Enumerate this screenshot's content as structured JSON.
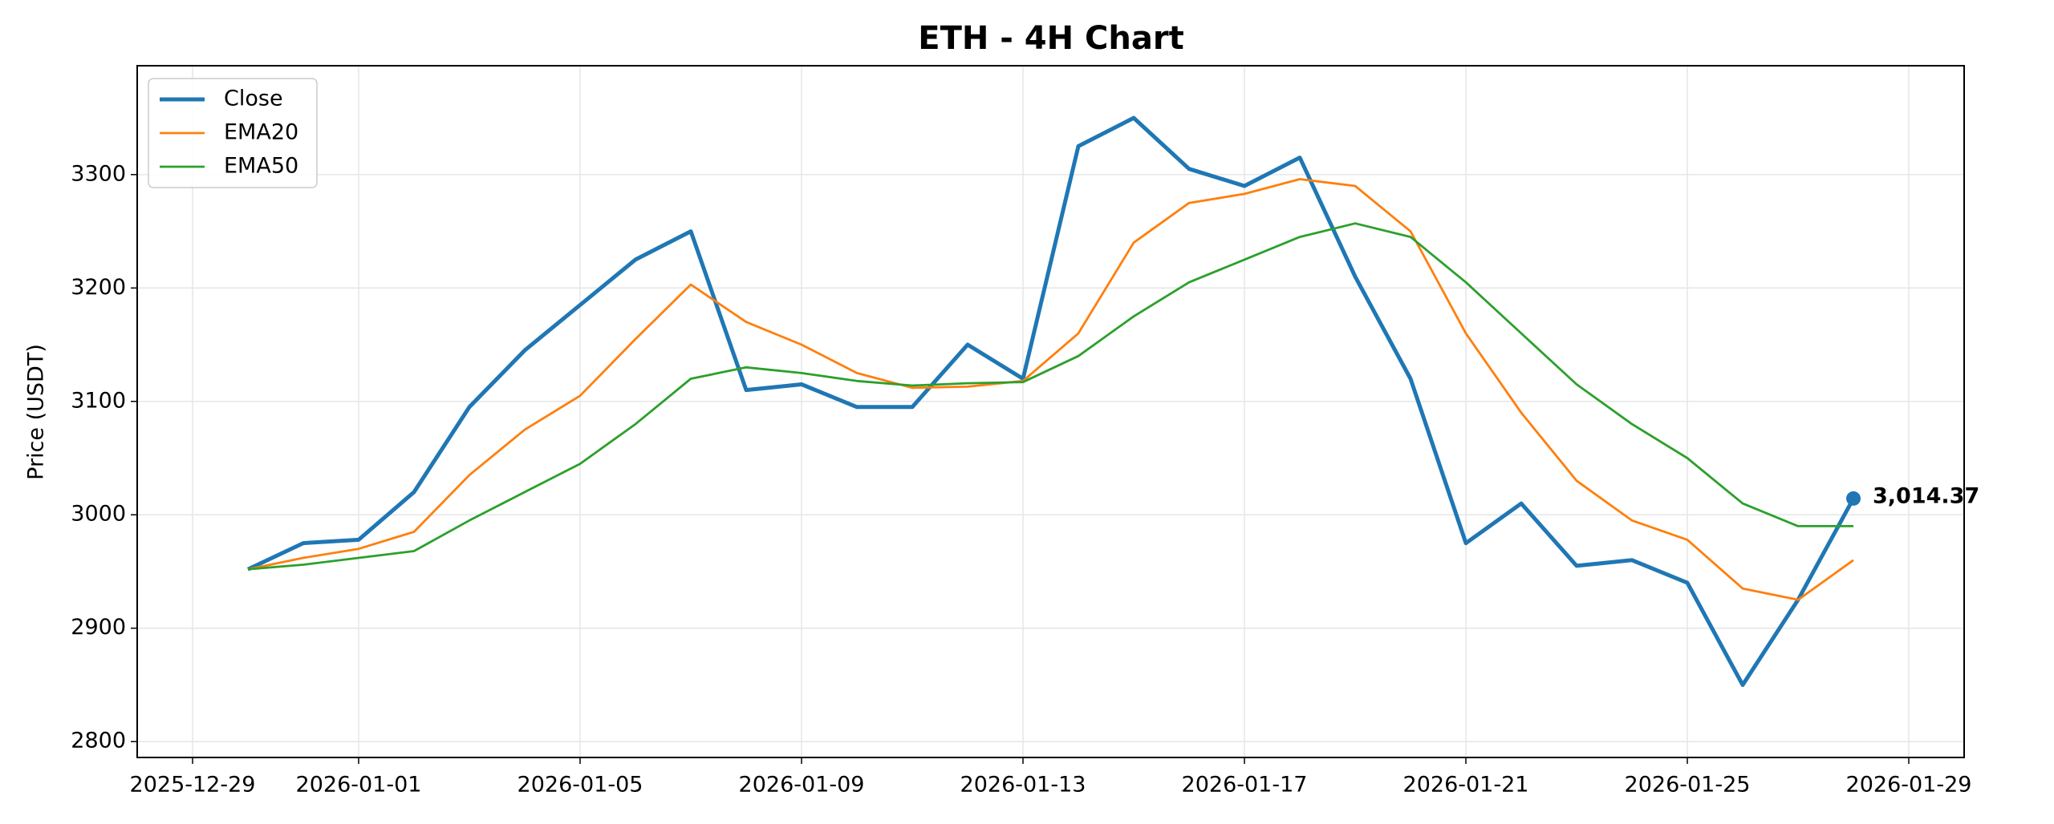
{
  "chart_data": {
    "type": "line",
    "title": "ETH - 4H Chart",
    "y_label": "Price (USDT)",
    "x": [
      "2025-12-30",
      "2025-12-31",
      "2026-01-01",
      "2026-01-02",
      "2026-01-03",
      "2026-01-04",
      "2026-01-05",
      "2026-01-06",
      "2026-01-07",
      "2026-01-08",
      "2026-01-09",
      "2026-01-10",
      "2026-01-11",
      "2026-01-12",
      "2026-01-13",
      "2026-01-14",
      "2026-01-15",
      "2026-01-16",
      "2026-01-17",
      "2026-01-18",
      "2026-01-19",
      "2026-01-20",
      "2026-01-21",
      "2026-01-22",
      "2026-01-23",
      "2026-01-24",
      "2026-01-25",
      "2026-01-26",
      "2026-01-27",
      "2026-01-28"
    ],
    "series": [
      {
        "name": "Close",
        "color": "#1f77b4",
        "values": [
          2952,
          2975,
          2978,
          3020,
          3095,
          3145,
          3185,
          3225,
          3250,
          3110,
          3115,
          3095,
          3095,
          3150,
          3120,
          3325,
          3350,
          3305,
          3290,
          3315,
          3210,
          3120,
          2975,
          3010,
          2955,
          2960,
          2940,
          2850,
          2925,
          3014.37
        ],
        "value_labels": [
          null,
          null,
          null,
          null,
          null,
          null,
          null,
          null,
          null,
          null,
          null,
          null,
          null,
          null,
          null,
          null,
          null,
          null,
          null,
          null,
          null,
          null,
          null,
          null,
          null,
          null,
          null,
          null,
          null,
          "3,014.37"
        ]
      },
      {
        "name": "EMA20",
        "color": "#ff7f0e",
        "values": [
          2952,
          2962,
          2970,
          2985,
          3035,
          3075,
          3105,
          3155,
          3203,
          3170,
          3150,
          3125,
          3112,
          3113,
          3118,
          3160,
          3240,
          3275,
          3283,
          3296,
          3290,
          3250,
          3160,
          3090,
          3030,
          2995,
          2978,
          2935,
          2925,
          2960
        ]
      },
      {
        "name": "EMA50",
        "color": "#2ca02c",
        "values": [
          2952,
          2956,
          2962,
          2968,
          2995,
          3020,
          3045,
          3080,
          3120,
          3130,
          3125,
          3118,
          3114,
          3116,
          3117,
          3140,
          3175,
          3205,
          3225,
          3245,
          3257,
          3245,
          3205,
          3160,
          3115,
          3080,
          3050,
          3010,
          2990,
          2990
        ]
      }
    ],
    "xlim": [
      "2025-12-28",
      "2026-01-30"
    ],
    "xticks": [
      "2025-12-29",
      "2026-01-01",
      "2026-01-05",
      "2026-01-09",
      "2026-01-13",
      "2026-01-17",
      "2026-01-21",
      "2026-01-25",
      "2026-01-29"
    ],
    "ylim": [
      2786,
      3396
    ],
    "yticks": [
      2800,
      2900,
      3000,
      3100,
      3200,
      3300
    ],
    "grid": true,
    "legend": "upper left"
  }
}
